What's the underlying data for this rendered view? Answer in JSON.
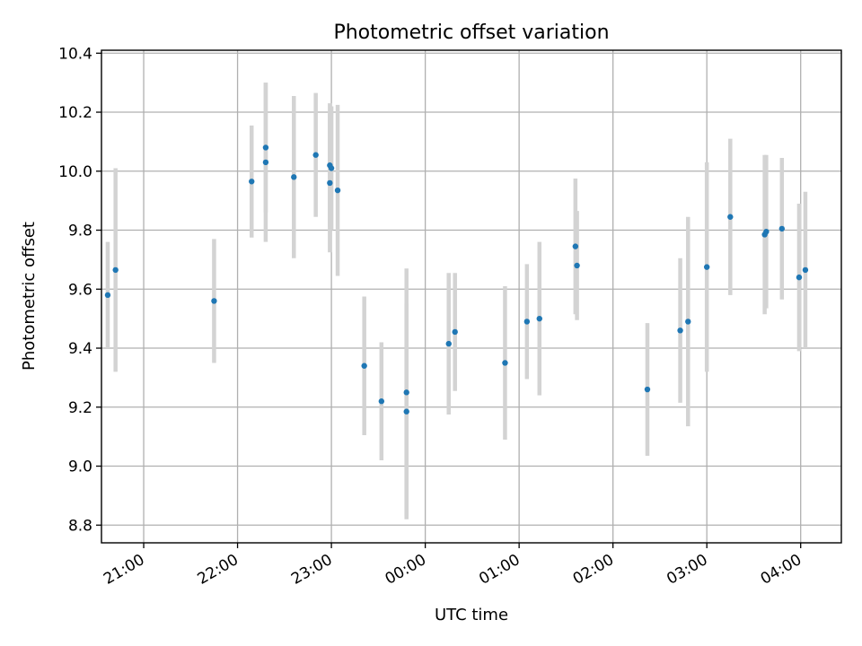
{
  "chart_data": {
    "type": "scatter",
    "title": "Photometric offset variation",
    "xlabel": "UTC time",
    "ylabel": "Photometric offset",
    "xlim": [
      "20:33",
      "04:26"
    ],
    "ylim": [
      8.74,
      10.41
    ],
    "grid": true,
    "x_ticks": [
      "21:00",
      "22:00",
      "23:00",
      "00:00",
      "01:00",
      "02:00",
      "03:00",
      "04:00"
    ],
    "y_ticks": [
      "8.8",
      "9.0",
      "9.2",
      "9.4",
      "9.6",
      "9.8",
      "10.0",
      "10.2",
      "10.4"
    ],
    "colors": {
      "points": "#1f77b4",
      "error_bars": "#d3d3d3",
      "grid": "#b0b0b0"
    },
    "series": [
      {
        "points": [
          {
            "time": "20:37",
            "y": 9.58,
            "err": 0.18
          },
          {
            "time": "20:42",
            "y": 9.665,
            "err": 0.345
          },
          {
            "time": "21:45",
            "y": 9.56,
            "err": 0.21
          },
          {
            "time": "22:09",
            "y": 9.965,
            "err": 0.19
          },
          {
            "time": "22:18",
            "y": 10.08,
            "err": 0.22
          },
          {
            "time": "22:18",
            "y": 10.03,
            "err": 0.27
          },
          {
            "time": "22:36",
            "y": 9.98,
            "err": 0.275
          },
          {
            "time": "22:50",
            "y": 10.055,
            "err": 0.21
          },
          {
            "time": "22:59",
            "y": 10.02,
            "err": 0.21
          },
          {
            "time": "23:00",
            "y": 10.01,
            "err": 0.21
          },
          {
            "time": "22:59",
            "y": 9.96,
            "err": 0.235
          },
          {
            "time": "23:04",
            "y": 9.935,
            "err": 0.29
          },
          {
            "time": "23:21",
            "y": 9.34,
            "err": 0.235
          },
          {
            "time": "23:32",
            "y": 9.22,
            "err": 0.2
          },
          {
            "time": "23:48",
            "y": 9.25,
            "err": 0.42
          },
          {
            "time": "23:48",
            "y": 9.185,
            "err": 0.365
          },
          {
            "time": "00:15",
            "y": 9.415,
            "err": 0.24
          },
          {
            "time": "00:19",
            "y": 9.455,
            "err": 0.2
          },
          {
            "time": "00:51",
            "y": 9.35,
            "err": 0.26
          },
          {
            "time": "01:05",
            "y": 9.49,
            "err": 0.195
          },
          {
            "time": "01:13",
            "y": 9.5,
            "err": 0.26
          },
          {
            "time": "01:36",
            "y": 9.745,
            "err": 0.23
          },
          {
            "time": "01:37",
            "y": 9.68,
            "err": 0.185
          },
          {
            "time": "02:22",
            "y": 9.26,
            "err": 0.225
          },
          {
            "time": "02:43",
            "y": 9.46,
            "err": 0.245
          },
          {
            "time": "02:48",
            "y": 9.49,
            "err": 0.355
          },
          {
            "time": "03:00",
            "y": 9.675,
            "err": 0.355
          },
          {
            "time": "03:15",
            "y": 9.845,
            "err": 0.265
          },
          {
            "time": "03:37",
            "y": 9.785,
            "err": 0.27
          },
          {
            "time": "03:38",
            "y": 9.795,
            "err": 0.26
          },
          {
            "time": "03:48",
            "y": 9.805,
            "err": 0.24
          },
          {
            "time": "03:59",
            "y": 9.64,
            "err": 0.25
          },
          {
            "time": "04:03",
            "y": 9.665,
            "err": 0.265
          }
        ]
      }
    ]
  }
}
